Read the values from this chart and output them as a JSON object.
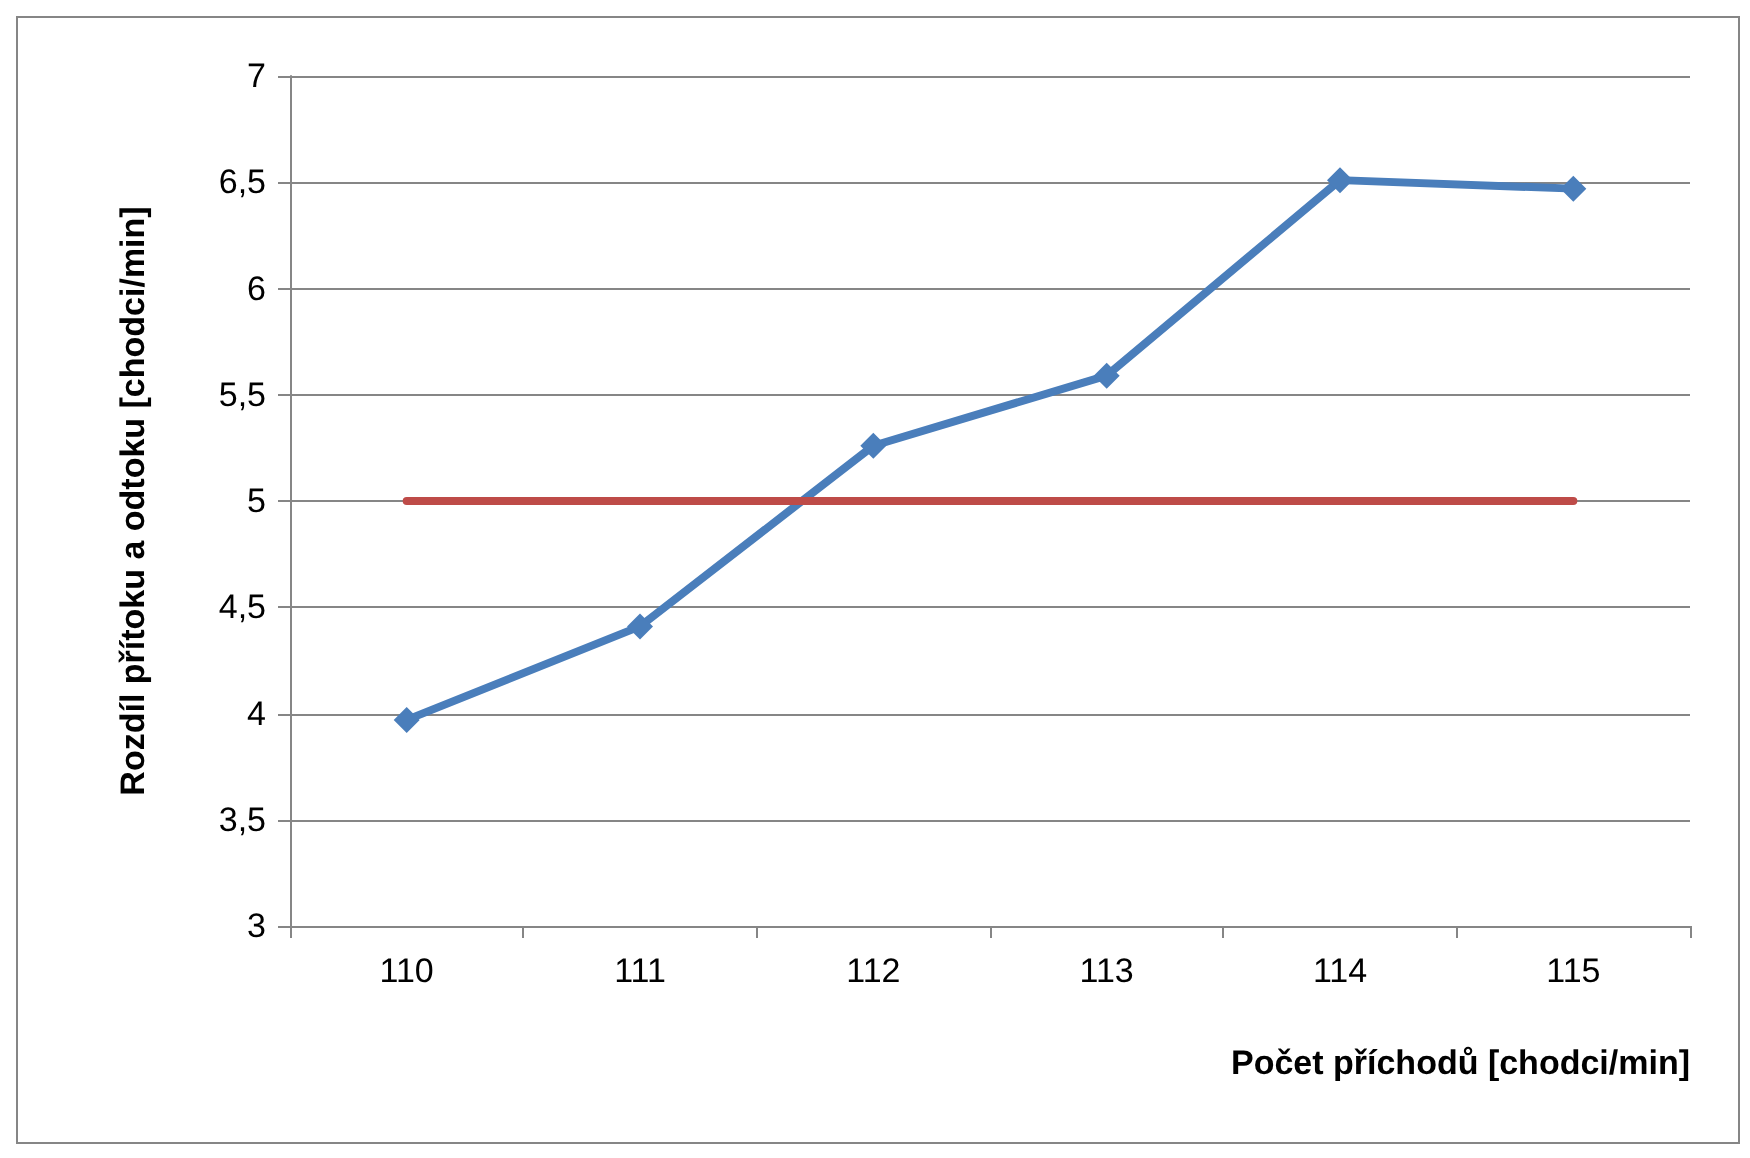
{
  "chart_data": {
    "type": "line",
    "xlabel": "Počet příchodů [chodci/min]",
    "ylabel": "Rozdíl přítoku a odtoku [chodci/min]",
    "categories": [
      "110",
      "111",
      "112",
      "113",
      "114",
      "115"
    ],
    "series": [
      {
        "color": "#4a7ebb",
        "values": [
          3.97,
          4.41,
          5.26,
          5.59,
          6.51,
          6.47
        ],
        "marker": "diamond"
      },
      {
        "color": "#be4b48",
        "values": [
          5,
          5,
          5,
          5,
          5,
          5
        ],
        "marker": "none"
      }
    ],
    "ylim": [
      3,
      7
    ],
    "yticks": [
      {
        "value": 3,
        "label": "3"
      },
      {
        "value": 3.5,
        "label": "3,5"
      },
      {
        "value": 4,
        "label": "4"
      },
      {
        "value": 4.5,
        "label": "4,5"
      },
      {
        "value": 5,
        "label": "5"
      },
      {
        "value": 5.5,
        "label": "5,5"
      },
      {
        "value": 6,
        "label": "6"
      },
      {
        "value": 6.5,
        "label": "6,5"
      },
      {
        "value": 7,
        "label": "7"
      }
    ],
    "grid": "y",
    "line_style": "solid"
  }
}
